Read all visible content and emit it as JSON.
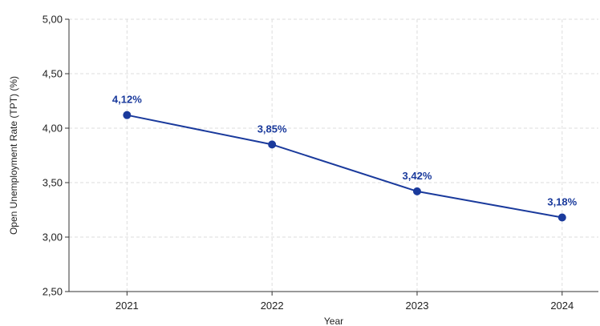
{
  "chart_data": {
    "type": "line",
    "title": "",
    "xlabel": "Year",
    "ylabel": "Open Unemployment Rate (TPT) (%)",
    "categories": [
      "2021",
      "2022",
      "2023",
      "2024"
    ],
    "x": [
      2021,
      2022,
      2023,
      2024
    ],
    "series": [
      {
        "values": [
          4.12,
          3.85,
          3.42,
          3.18
        ],
        "labels": [
          "4,12%",
          "3,85%",
          "3,42%",
          "3,18%"
        ]
      }
    ],
    "xlim": [
      2020.6,
      2024.25
    ],
    "ylim": [
      2.5,
      5.0
    ],
    "yticks": [
      2.5,
      3.0,
      3.5,
      4.0,
      4.5,
      5.0
    ],
    "ytick_labels": [
      "2,50",
      "3,00",
      "3,50",
      "4,00",
      "4,50",
      "5,00"
    ],
    "grid": true,
    "grid_style": "dashed",
    "colors": {
      "line": "#1a3a9c",
      "label": "#1a3a9c",
      "grid": "#dddddd",
      "axis": "#333333"
    }
  }
}
